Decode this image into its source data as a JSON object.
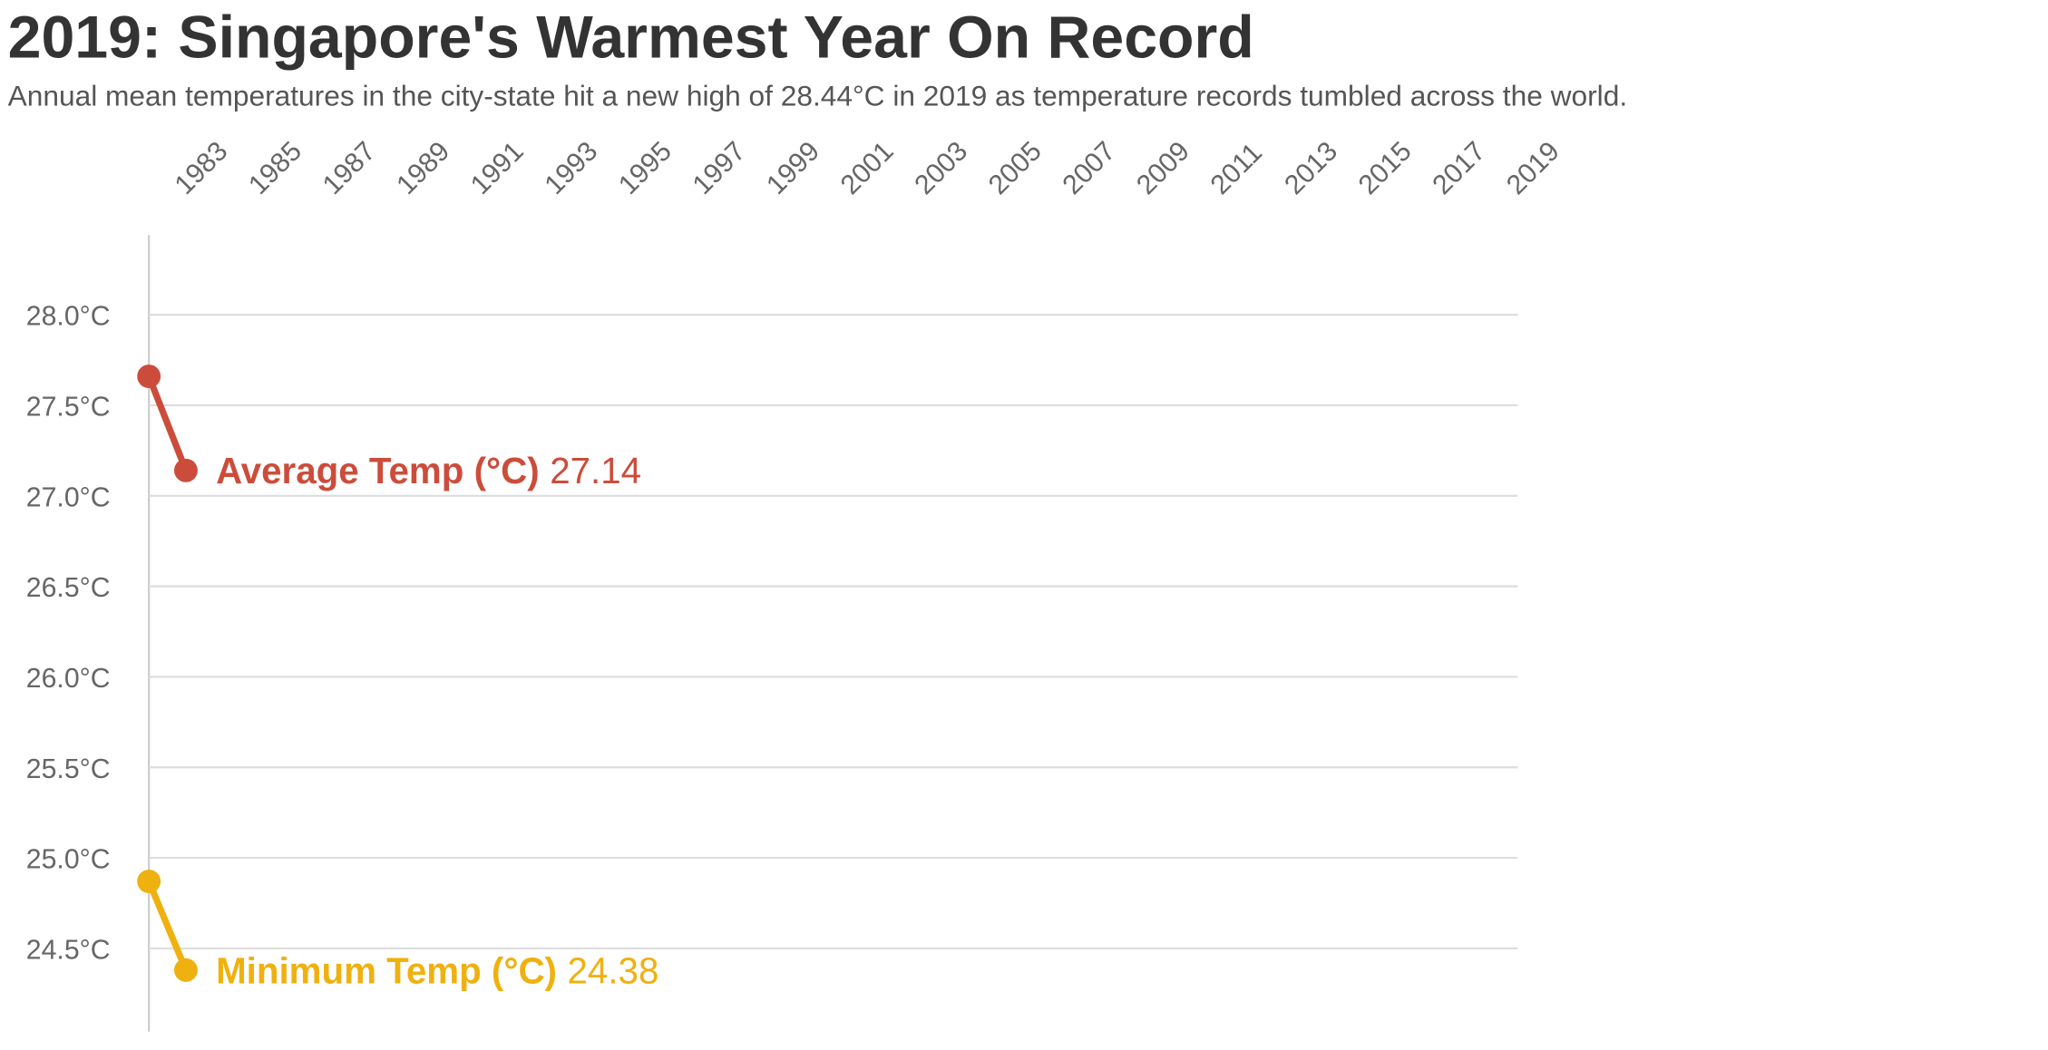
{
  "chart_data": {
    "type": "line",
    "title": "2019: Singapore's Warmest Year On Record",
    "subtitle": "Annual mean temperatures in the city-state hit a new high of 28.44°C in 2019 as temperature records tumbled across the world.",
    "x": [
      1982,
      1983
    ],
    "series": [
      {
        "name": "Average Temp (°C)",
        "color": "#cc4c3b",
        "values": [
          27.66,
          27.14
        ]
      },
      {
        "name": "Minimum Temp (°C)",
        "color": "#efb110",
        "values": [
          24.87,
          24.38
        ]
      }
    ],
    "xlim": [
      1982,
      2019
    ],
    "xticks": [
      1983,
      1985,
      1987,
      1989,
      1991,
      1993,
      1995,
      1997,
      1999,
      2001,
      2003,
      2005,
      2007,
      2009,
      2011,
      2013,
      2015,
      2017,
      2019
    ],
    "ylim": [
      24.04,
      28.44
    ],
    "yticks": [
      {
        "value": 24.5,
        "label": "24.5°C"
      },
      {
        "value": 25,
        "label": "25.0°C"
      },
      {
        "value": 25.5,
        "label": "25.5°C"
      },
      {
        "value": 26,
        "label": "26.0°C"
      },
      {
        "value": 26.5,
        "label": "26.5°C"
      },
      {
        "value": 27,
        "label": "27.0°C"
      },
      {
        "value": 27.5,
        "label": "27.5°C"
      },
      {
        "value": 28,
        "label": "28.0°C"
      }
    ],
    "grid": true
  }
}
